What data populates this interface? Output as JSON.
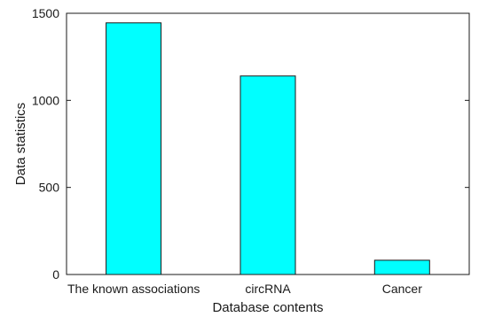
{
  "chart_data": {
    "type": "bar",
    "title": "",
    "xlabel": "Database contents",
    "ylabel": "Data statistics",
    "categories": [
      "The known associations",
      "circRNA",
      "Cancer"
    ],
    "values": [
      1445,
      1140,
      82
    ],
    "ylim": [
      0,
      1500
    ],
    "yticks": [
      0,
      500,
      1000,
      1500
    ],
    "ytick_labels": [
      "0",
      "500",
      "1000",
      "1500"
    ],
    "grid": false,
    "legend": "none",
    "bar_color": "#00ffff",
    "bar_edge_color": "#1a1a1a"
  }
}
